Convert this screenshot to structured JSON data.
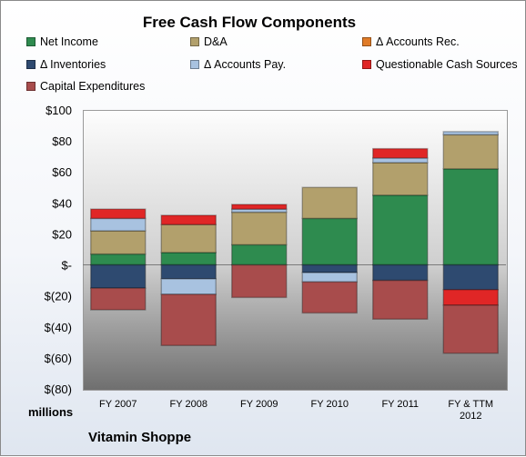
{
  "chart_data": {
    "type": "bar",
    "stacked": true,
    "title": "Free Cash Flow Components",
    "categories": [
      "FY 2007",
      "FY 2008",
      "FY 2009",
      "FY 2010",
      "FY 2011",
      "FY & TTM 2012"
    ],
    "series": [
      {
        "name": "Net Income",
        "color": "#2e8b4f",
        "values": [
          7,
          8,
          13,
          30,
          45,
          62
        ]
      },
      {
        "name": "D&A",
        "color": "#b2a06c",
        "values": [
          15,
          18,
          21,
          20,
          21,
          22
        ]
      },
      {
        "name": "Δ Accounts Rec.",
        "color": "#e07b27",
        "values": [
          0,
          0,
          0,
          0,
          0,
          0
        ]
      },
      {
        "name": "Δ Inventories",
        "color": "#2e4a70",
        "values": [
          -15,
          -9,
          0,
          -5,
          -10,
          -16
        ]
      },
      {
        "name": "Δ Accounts Pay.",
        "color": "#a8c2e0",
        "values": [
          8,
          -10,
          2,
          -6,
          3,
          2
        ]
      },
      {
        "name": "Questionable Cash Sources",
        "color": "#e02626",
        "values": [
          6,
          6,
          3,
          0,
          6,
          -10
        ]
      },
      {
        "name": "Capital Expenditures",
        "color": "#a84c4c",
        "values": [
          -14,
          -33,
          -21,
          -20,
          -25,
          -31
        ]
      }
    ],
    "ylabel": "millions",
    "ylim": [
      -80,
      100
    ],
    "y_ticks": [
      100,
      80,
      60,
      40,
      20,
      0,
      -20,
      -40,
      -60,
      -80
    ],
    "y_tick_labels": [
      "$100",
      "$80",
      "$60",
      "$40",
      "$20",
      "$-",
      "$(20)",
      "$(40)",
      "$(60)",
      "$(80)"
    ],
    "legend_position": "top",
    "grid": false
  },
  "footer": {
    "units_label": "millions",
    "company": "Vitamin Shoppe"
  }
}
